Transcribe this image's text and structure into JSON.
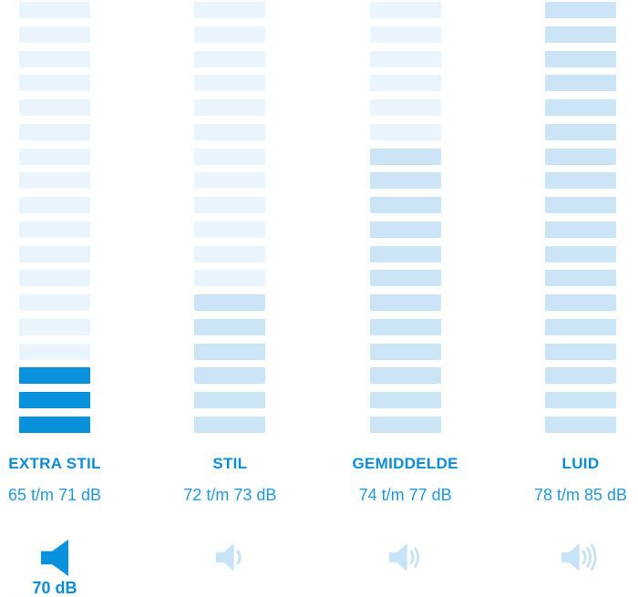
{
  "colors": {
    "background": "#FFFFFF",
    "bar_inactive": "#E9F4FC",
    "bar_active": "#CBE5F7",
    "bar_highlight": "#0991DC",
    "title_text": "#0A8DD6",
    "range_text": "#2297E0",
    "value_text": "#0A8DD6",
    "icon_muted": "#C7E3F7",
    "icon_highlight": "#0991DC"
  },
  "chart_data": {
    "type": "bar",
    "subtype": "segmented-noise-level-indicator",
    "orientation": "vertical",
    "total_segments_per_column": 18,
    "legend_position": "none",
    "grid": false,
    "categories": [
      "EXTRA STIL",
      "STIL",
      "GEMIDDELDE",
      "LUID"
    ],
    "columns": [
      {
        "label": "EXTRA STIL",
        "range": "65 t/m 71 dB",
        "active_segments": 3,
        "active_style": "highlight",
        "speaker_waves": 0,
        "selected_value": "70 dB"
      },
      {
        "label": "STIL",
        "range": "72 t/m 73 dB",
        "active_segments": 6,
        "active_style": "medium",
        "speaker_waves": 1,
        "selected_value": ""
      },
      {
        "label": "GEMIDDELDE",
        "range": "74 t/m 77 dB",
        "active_segments": 12,
        "active_style": "medium",
        "speaker_waves": 2,
        "selected_value": ""
      },
      {
        "label": "LUID",
        "range": "78 t/m 85 dB",
        "active_segments": 18,
        "active_style": "medium",
        "speaker_waves": 3,
        "selected_value": ""
      }
    ]
  }
}
